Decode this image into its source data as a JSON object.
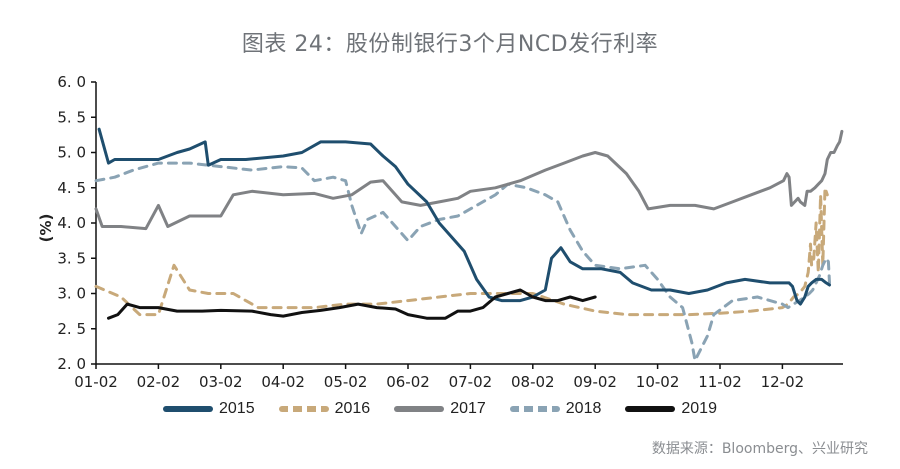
{
  "title": "图表 24：股份制银行3个月NCD发行利率",
  "source": "数据来源：Bloomberg、兴业研究",
  "chart_data": {
    "type": "line",
    "title": "图表 24：股份制银行3个月NCD发行利率",
    "xlabel": "",
    "ylabel": "(%)",
    "ylim": [
      2.0,
      6.0
    ],
    "yticks": [
      "2.0",
      "2.5",
      "3.0",
      "3.5",
      "4.0",
      "4.5",
      "5.0",
      "5.5",
      "6.0"
    ],
    "xticks": [
      "01-02",
      "02-02",
      "03-02",
      "04-02",
      "05-02",
      "06-02",
      "07-02",
      "08-02",
      "09-02",
      "10-02",
      "11-02",
      "12-02"
    ],
    "x_unit": "months since 01-02 (0 = 01-02, 11 = 12-02)",
    "legend_position": "bottom",
    "grid": false,
    "series": [
      {
        "name": "2015",
        "color": "#1f4e6e",
        "style": "solid",
        "points": [
          [
            0.05,
            5.33
          ],
          [
            0.2,
            4.85
          ],
          [
            0.3,
            4.9
          ],
          [
            1.0,
            4.9
          ],
          [
            1.3,
            5.0
          ],
          [
            1.5,
            5.05
          ],
          [
            1.75,
            5.15
          ],
          [
            1.8,
            4.82
          ],
          [
            2.0,
            4.9
          ],
          [
            2.4,
            4.9
          ],
          [
            3.0,
            4.95
          ],
          [
            3.3,
            5.0
          ],
          [
            3.6,
            5.15
          ],
          [
            4.0,
            5.15
          ],
          [
            4.4,
            5.12
          ],
          [
            4.6,
            4.95
          ],
          [
            4.8,
            4.8
          ],
          [
            5.0,
            4.55
          ],
          [
            5.3,
            4.3
          ],
          [
            5.5,
            4.0
          ],
          [
            5.7,
            3.8
          ],
          [
            5.9,
            3.6
          ],
          [
            6.1,
            3.2
          ],
          [
            6.3,
            2.95
          ],
          [
            6.5,
            2.9
          ],
          [
            6.8,
            2.9
          ],
          [
            7.0,
            2.95
          ],
          [
            7.2,
            3.05
          ],
          [
            7.3,
            3.5
          ],
          [
            7.45,
            3.65
          ],
          [
            7.6,
            3.45
          ],
          [
            7.8,
            3.35
          ],
          [
            8.1,
            3.35
          ],
          [
            8.4,
            3.3
          ],
          [
            8.6,
            3.15
          ],
          [
            8.9,
            3.05
          ],
          [
            9.2,
            3.05
          ],
          [
            9.5,
            3.0
          ],
          [
            9.8,
            3.05
          ],
          [
            10.1,
            3.15
          ],
          [
            10.4,
            3.2
          ],
          [
            10.8,
            3.15
          ],
          [
            11.2,
            3.15
          ],
          [
            11.6,
            3.15
          ],
          [
            11.9,
            3.1
          ],
          [
            12.3,
            2.9
          ],
          [
            12.6,
            2.85
          ],
          [
            13.0,
            2.95
          ],
          [
            13.3,
            3.1
          ],
          [
            13.6,
            3.15
          ],
          [
            14.0,
            3.2
          ],
          [
            14.5,
            3.2
          ],
          [
            14.9,
            3.15
          ],
          [
            15.2,
            3.12
          ]
        ]
      },
      {
        "name": "2016",
        "color": "#c8a97a",
        "style": "dashed",
        "points": [
          [
            0.0,
            3.1
          ],
          [
            0.4,
            2.95
          ],
          [
            0.7,
            2.7
          ],
          [
            1.0,
            2.7
          ],
          [
            1.25,
            3.4
          ],
          [
            1.5,
            3.05
          ],
          [
            1.8,
            3.0
          ],
          [
            2.2,
            3.0
          ],
          [
            2.6,
            2.8
          ],
          [
            3.0,
            2.8
          ],
          [
            3.5,
            2.8
          ],
          [
            4.0,
            2.85
          ],
          [
            4.5,
            2.85
          ],
          [
            5.0,
            2.9
          ],
          [
            5.5,
            2.95
          ],
          [
            6.0,
            3.0
          ],
          [
            6.5,
            3.0
          ],
          [
            7.0,
            3.0
          ],
          [
            7.5,
            2.85
          ],
          [
            8.0,
            2.75
          ],
          [
            8.5,
            2.7
          ],
          [
            9.0,
            2.7
          ],
          [
            9.5,
            2.7
          ],
          [
            10.0,
            2.72
          ],
          [
            10.5,
            2.75
          ],
          [
            11.0,
            2.8
          ],
          [
            11.5,
            2.85
          ],
          [
            12.0,
            2.95
          ],
          [
            12.5,
            3.0
          ],
          [
            13.0,
            3.1
          ],
          [
            13.3,
            3.3
          ],
          [
            13.5,
            3.7
          ],
          [
            13.6,
            3.4
          ],
          [
            13.8,
            3.5
          ],
          [
            14.0,
            4.0
          ],
          [
            14.2,
            3.3
          ],
          [
            14.4,
            4.4
          ],
          [
            14.6,
            3.4
          ],
          [
            14.8,
            4.5
          ],
          [
            15.0,
            4.4
          ]
        ]
      },
      {
        "name": "2017",
        "color": "#808285",
        "style": "solid",
        "points": [
          [
            0.0,
            4.2
          ],
          [
            0.1,
            3.95
          ],
          [
            0.4,
            3.95
          ],
          [
            0.8,
            3.92
          ],
          [
            1.0,
            4.25
          ],
          [
            1.15,
            3.95
          ],
          [
            1.5,
            4.1
          ],
          [
            2.0,
            4.1
          ],
          [
            2.2,
            4.4
          ],
          [
            2.5,
            4.45
          ],
          [
            3.0,
            4.4
          ],
          [
            3.5,
            4.42
          ],
          [
            3.8,
            4.35
          ],
          [
            4.1,
            4.4
          ],
          [
            4.4,
            4.58
          ],
          [
            4.6,
            4.6
          ],
          [
            4.9,
            4.3
          ],
          [
            5.2,
            4.25
          ],
          [
            5.5,
            4.3
          ],
          [
            5.8,
            4.35
          ],
          [
            6.0,
            4.45
          ],
          [
            6.4,
            4.5
          ],
          [
            6.8,
            4.6
          ],
          [
            7.2,
            4.75
          ],
          [
            7.5,
            4.85
          ],
          [
            7.8,
            4.95
          ],
          [
            8.0,
            5.0
          ],
          [
            8.2,
            4.95
          ],
          [
            8.5,
            4.7
          ],
          [
            8.7,
            4.45
          ],
          [
            8.85,
            4.2
          ],
          [
            9.2,
            4.25
          ],
          [
            9.6,
            4.25
          ],
          [
            9.9,
            4.2
          ],
          [
            10.2,
            4.3
          ],
          [
            10.5,
            4.4
          ],
          [
            10.8,
            4.5
          ],
          [
            11.1,
            4.6
          ],
          [
            11.4,
            4.7
          ],
          [
            11.6,
            4.65
          ],
          [
            11.8,
            4.25
          ],
          [
            12.1,
            4.3
          ],
          [
            12.4,
            4.35
          ],
          [
            12.6,
            4.3
          ],
          [
            13.0,
            4.25
          ],
          [
            13.2,
            4.45
          ],
          [
            13.5,
            4.45
          ],
          [
            13.9,
            4.5
          ],
          [
            14.2,
            4.55
          ],
          [
            14.5,
            4.6
          ],
          [
            14.8,
            4.7
          ],
          [
            15.0,
            4.9
          ],
          [
            15.3,
            5.0
          ],
          [
            15.6,
            5.0
          ],
          [
            15.9,
            5.1
          ],
          [
            16.1,
            5.15
          ],
          [
            16.3,
            5.3
          ]
        ]
      },
      {
        "name": "2018",
        "color": "#8aa3b4",
        "style": "dashed",
        "points": [
          [
            0.0,
            4.6
          ],
          [
            0.3,
            4.65
          ],
          [
            0.6,
            4.75
          ],
          [
            1.0,
            4.85
          ],
          [
            1.5,
            4.85
          ],
          [
            2.0,
            4.8
          ],
          [
            2.5,
            4.75
          ],
          [
            3.0,
            4.8
          ],
          [
            3.3,
            4.78
          ],
          [
            3.5,
            4.6
          ],
          [
            3.8,
            4.65
          ],
          [
            4.0,
            4.6
          ],
          [
            4.1,
            4.25
          ],
          [
            4.25,
            3.85
          ],
          [
            4.35,
            4.05
          ],
          [
            4.6,
            4.15
          ],
          [
            4.8,
            3.95
          ],
          [
            5.0,
            3.75
          ],
          [
            5.2,
            3.95
          ],
          [
            5.5,
            4.05
          ],
          [
            5.8,
            4.1
          ],
          [
            6.1,
            4.25
          ],
          [
            6.4,
            4.4
          ],
          [
            6.6,
            4.55
          ],
          [
            6.9,
            4.5
          ],
          [
            7.2,
            4.4
          ],
          [
            7.4,
            4.3
          ],
          [
            7.6,
            3.9
          ],
          [
            7.8,
            3.6
          ],
          [
            8.0,
            3.4
          ],
          [
            8.4,
            3.35
          ],
          [
            8.8,
            3.4
          ],
          [
            9.0,
            3.2
          ],
          [
            9.2,
            2.95
          ],
          [
            9.4,
            2.8
          ],
          [
            9.55,
            2.3
          ],
          [
            9.6,
            2.05
          ],
          [
            9.8,
            2.4
          ],
          [
            9.9,
            2.7
          ],
          [
            10.2,
            2.9
          ],
          [
            10.6,
            2.95
          ],
          [
            11.0,
            2.85
          ],
          [
            11.5,
            2.8
          ],
          [
            12.0,
            2.85
          ],
          [
            12.5,
            2.9
          ],
          [
            13.0,
            2.95
          ],
          [
            13.4,
            3.0
          ],
          [
            13.7,
            3.05
          ],
          [
            14.0,
            3.15
          ],
          [
            14.3,
            3.25
          ],
          [
            14.6,
            3.4
          ],
          [
            14.9,
            3.5
          ],
          [
            15.1,
            3.45
          ],
          [
            15.2,
            3.15
          ]
        ]
      },
      {
        "name": "2019",
        "color": "#111111",
        "style": "solid",
        "points": [
          [
            0.2,
            2.65
          ],
          [
            0.35,
            2.7
          ],
          [
            0.5,
            2.85
          ],
          [
            0.7,
            2.8
          ],
          [
            1.0,
            2.8
          ],
          [
            1.3,
            2.75
          ],
          [
            1.7,
            2.75
          ],
          [
            2.0,
            2.76
          ],
          [
            2.5,
            2.75
          ],
          [
            2.8,
            2.7
          ],
          [
            3.0,
            2.68
          ],
          [
            3.3,
            2.73
          ],
          [
            3.6,
            2.76
          ],
          [
            3.9,
            2.8
          ],
          [
            4.2,
            2.85
          ],
          [
            4.5,
            2.8
          ],
          [
            4.8,
            2.78
          ],
          [
            5.0,
            2.7
          ],
          [
            5.3,
            2.65
          ],
          [
            5.6,
            2.65
          ],
          [
            5.8,
            2.75
          ],
          [
            6.0,
            2.75
          ],
          [
            6.2,
            2.8
          ],
          [
            6.4,
            2.95
          ],
          [
            6.6,
            3.0
          ],
          [
            6.8,
            3.05
          ],
          [
            7.0,
            2.95
          ],
          [
            7.2,
            2.9
          ],
          [
            7.4,
            2.9
          ],
          [
            7.6,
            2.95
          ],
          [
            7.8,
            2.9
          ],
          [
            8.0,
            2.95
          ]
        ]
      }
    ]
  },
  "legend": {
    "items": [
      {
        "label": "2015",
        "color": "#1f4e6e",
        "style": "solid"
      },
      {
        "label": "2016",
        "color": "#c8a97a",
        "style": "dashed"
      },
      {
        "label": "2017",
        "color": "#808285",
        "style": "solid"
      },
      {
        "label": "2018",
        "color": "#8aa3b4",
        "style": "dashed"
      },
      {
        "label": "2019",
        "color": "#111111",
        "style": "solid"
      }
    ]
  }
}
